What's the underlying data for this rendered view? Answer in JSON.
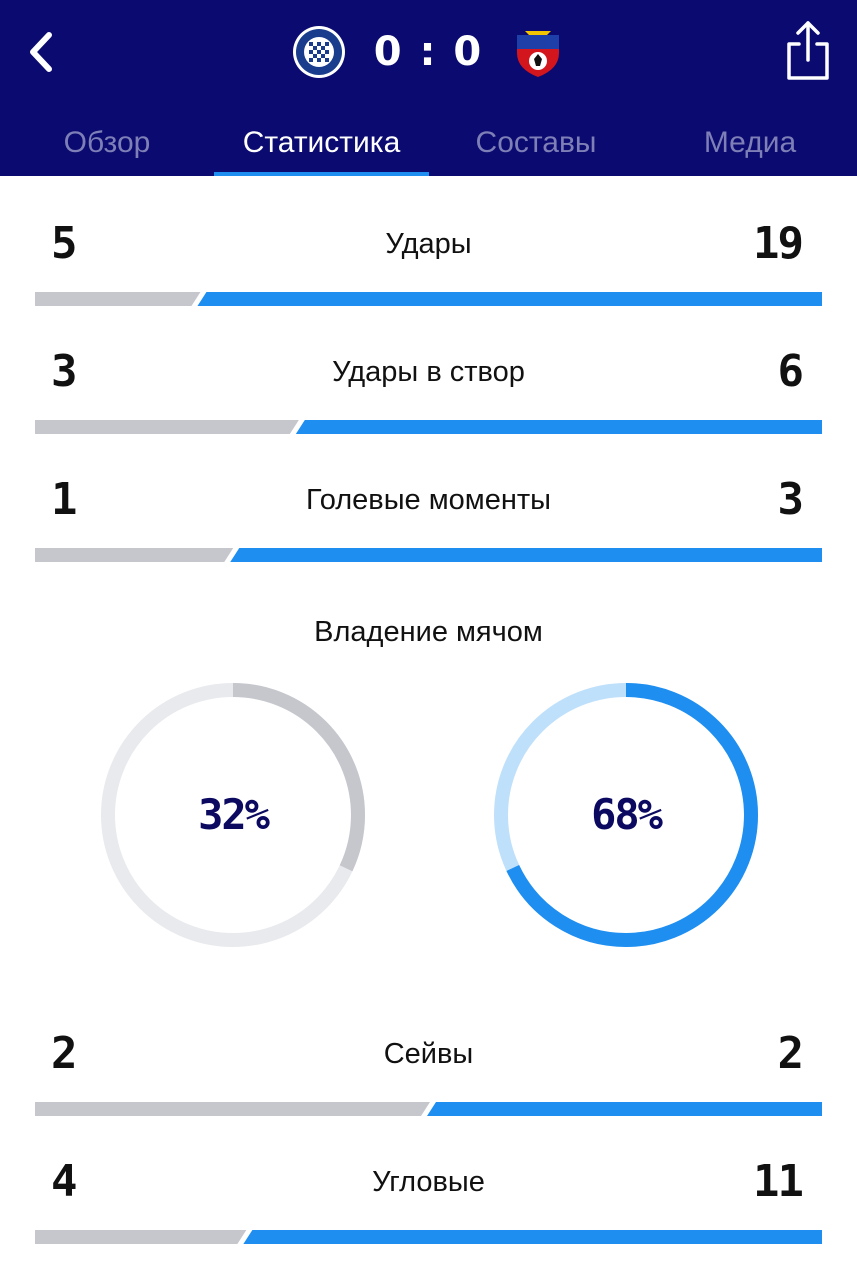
{
  "header": {
    "home_team_logo": "orenburg-logo",
    "away_team_logo": "cska-logo",
    "score": "0 : 0",
    "back_icon": "chevron-left-icon",
    "share_icon": "share-icon"
  },
  "tabs": [
    {
      "label": "Обзор",
      "active": false
    },
    {
      "label": "Статистика",
      "active": true
    },
    {
      "label": "Составы",
      "active": false
    },
    {
      "label": "Медиа",
      "active": false
    }
  ],
  "stats": [
    {
      "label": "Удары",
      "home": "5",
      "away": "19"
    },
    {
      "label": "Удары в створ",
      "home": "3",
      "away": "6"
    },
    {
      "label": "Голевые моменты",
      "home": "1",
      "away": "3"
    },
    {
      "label": "Сейвы",
      "home": "2",
      "away": "2"
    },
    {
      "label": "Угловые",
      "home": "4",
      "away": "11"
    }
  ],
  "possession": {
    "title": "Владение мячом",
    "home_pct": "32%",
    "away_pct": "68%",
    "home_value": 32,
    "away_value": 68
  },
  "colors": {
    "header_bg": "#0b0a70",
    "tab_active": "#ffffff",
    "tab_inactive": "#7d7fb6",
    "accent_blue": "#1e8ef0",
    "home_gray": "#c5c7cd",
    "ring_track_home": "#e9eaee",
    "ring_track_away": "#bfe0fb",
    "pct_text": "#0b0a60"
  }
}
